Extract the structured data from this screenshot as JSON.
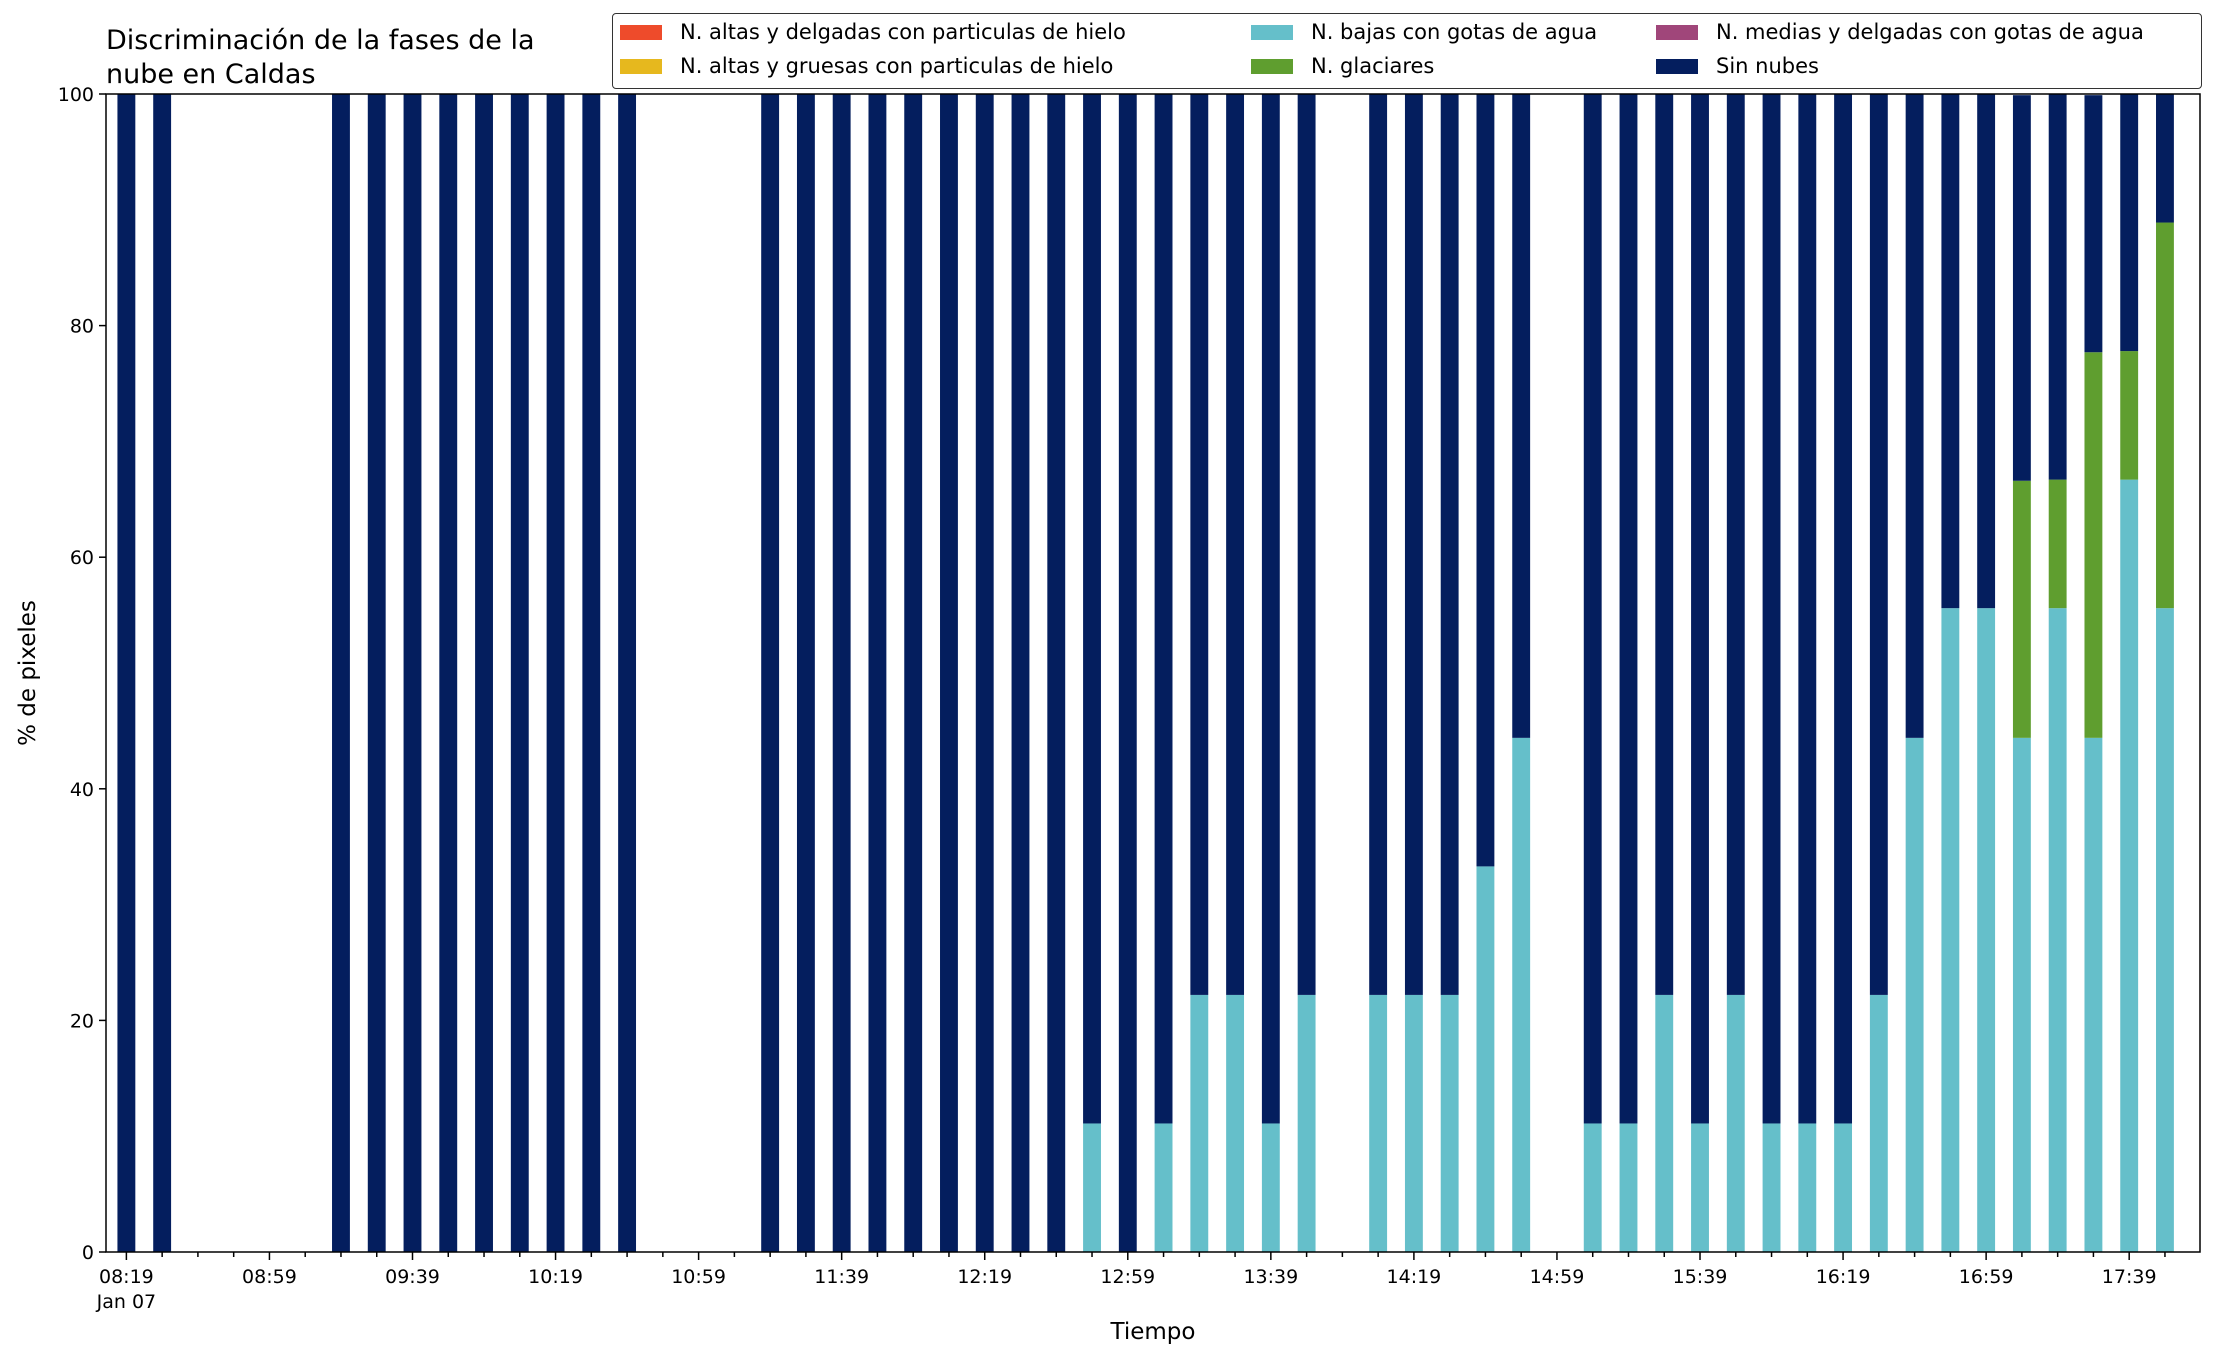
{
  "chart_data": {
    "type": "bar",
    "stacked": true,
    "title": "Discriminación de la fases de la nube en Caldas",
    "title_lines": [
      "Discriminación de la fases de la",
      "nube en Caldas"
    ],
    "xlabel": "Tiempo",
    "ylabel": "% de pixeles",
    "ylim": [
      0,
      100
    ],
    "yticks": [
      "0",
      "20",
      "40",
      "60",
      "80",
      "100"
    ],
    "x_tick_labels": [
      "08:19",
      "08:59",
      "09:39",
      "10:19",
      "10:59",
      "11:39",
      "12:19",
      "12:59",
      "13:39",
      "14:19",
      "14:59",
      "15:39",
      "16:19",
      "16:59",
      "17:39"
    ],
    "x_date_label": "Jan 07",
    "grid": false,
    "legend_position": "top-right",
    "categories": [
      "08:19",
      "08:29",
      "08:39",
      "08:49",
      "08:59",
      "09:09",
      "09:19",
      "09:29",
      "09:39",
      "09:49",
      "09:59",
      "10:09",
      "10:19",
      "10:29",
      "10:39",
      "10:49",
      "10:59",
      "11:09",
      "11:19",
      "11:29",
      "11:39",
      "11:49",
      "11:59",
      "12:09",
      "12:19",
      "12:29",
      "12:39",
      "12:49",
      "12:59",
      "13:09",
      "13:19",
      "13:29",
      "13:39",
      "13:49",
      "13:59",
      "14:09",
      "14:19",
      "14:29",
      "14:39",
      "14:49",
      "14:59",
      "15:09",
      "15:19",
      "15:29",
      "15:39",
      "15:49",
      "15:59",
      "16:09",
      "16:19",
      "16:29",
      "16:39",
      "16:49",
      "16:59",
      "17:09",
      "17:19",
      "17:29",
      "17:39",
      "17:49"
    ],
    "series": [
      {
        "name": "N. altas y delgadas con particulas de hielo",
        "color": "#ee4b2b",
        "values": [
          0,
          0,
          0,
          0,
          0,
          0,
          0,
          0,
          0,
          0,
          0,
          0,
          0,
          0,
          0,
          0,
          0,
          0,
          0,
          0,
          0,
          0,
          0,
          0,
          0,
          0,
          0,
          0,
          0,
          0,
          0,
          0,
          0,
          0,
          0,
          0,
          0,
          0,
          0,
          0,
          0,
          0,
          0,
          0,
          0,
          0,
          0,
          0,
          0,
          0,
          0,
          0,
          0,
          0,
          0,
          0,
          0,
          0
        ]
      },
      {
        "name": "N. altas y gruesas con particulas de hielo",
        "color": "#e6b81e",
        "values": [
          0,
          0,
          0,
          0,
          0,
          0,
          0,
          0,
          0,
          0,
          0,
          0,
          0,
          0,
          0,
          0,
          0,
          0,
          0,
          0,
          0,
          0,
          0,
          0,
          0,
          0,
          0,
          0,
          0,
          0,
          0,
          0,
          0,
          0,
          0,
          0,
          0,
          0,
          0,
          0,
          0,
          0,
          0,
          0,
          0,
          0,
          0,
          0,
          0,
          0,
          0,
          0,
          0,
          0,
          0,
          0,
          0,
          0
        ]
      },
      {
        "name": "N. bajas con gotas de agua",
        "color": "#65bfca",
        "values": [
          0,
          0,
          null,
          null,
          null,
          null,
          0,
          0,
          0,
          0,
          0,
          0,
          0,
          0,
          0,
          null,
          null,
          null,
          0,
          0,
          0,
          0,
          0,
          0,
          0,
          0,
          0,
          11.1,
          0,
          11.1,
          22.2,
          22.2,
          11.1,
          22.2,
          null,
          22.2,
          22.2,
          22.2,
          33.3,
          44.4,
          null,
          11.1,
          11.1,
          22.2,
          11.1,
          22.2,
          11.1,
          11.1,
          11.1,
          22.2,
          44.4,
          55.6,
          55.6,
          44.4,
          55.6,
          44.4,
          66.7,
          55.6
        ]
      },
      {
        "name": "N. glaciares",
        "color": "#5f9e2f",
        "values": [
          0,
          0,
          null,
          null,
          null,
          null,
          0,
          0,
          0,
          0,
          0,
          0,
          0,
          0,
          0,
          null,
          null,
          null,
          0,
          0,
          0,
          0,
          0,
          0,
          0,
          0,
          0,
          0,
          0,
          0,
          0,
          0,
          0,
          0,
          null,
          0,
          0,
          0,
          0,
          0,
          null,
          0,
          0,
          0,
          0,
          0,
          0,
          0,
          0,
          0,
          0,
          0,
          0,
          22.2,
          11.1,
          33.3,
          11.1,
          33.3
        ]
      },
      {
        "name": "N. medias y delgadas con gotas de agua",
        "color": "#a0467a",
        "values": [
          0,
          0,
          0,
          0,
          0,
          0,
          0,
          0,
          0,
          0,
          0,
          0,
          0,
          0,
          0,
          0,
          0,
          0,
          0,
          0,
          0,
          0,
          0,
          0,
          0,
          0,
          0,
          0,
          0,
          0,
          0,
          0,
          0,
          0,
          0,
          0,
          0,
          0,
          0,
          0,
          0,
          0,
          0,
          0,
          0,
          0,
          0,
          0,
          0,
          0,
          0,
          0,
          0,
          0,
          0,
          0,
          0,
          0
        ]
      },
      {
        "name": "Sin nubes",
        "color": "#041e5e",
        "values": [
          100,
          100,
          null,
          null,
          null,
          null,
          100,
          100,
          100,
          100,
          100,
          100,
          100,
          100,
          100,
          null,
          null,
          null,
          100,
          100,
          100,
          100,
          100,
          100,
          100,
          100,
          100,
          88.9,
          100,
          88.9,
          77.8,
          77.8,
          88.9,
          77.8,
          null,
          77.8,
          77.8,
          77.8,
          66.7,
          55.6,
          null,
          88.9,
          88.9,
          77.8,
          88.9,
          77.8,
          88.9,
          88.9,
          88.9,
          77.8,
          55.6,
          44.4,
          44.4,
          33.3,
          33.3,
          22.2,
          22.2,
          11.1
        ]
      }
    ]
  },
  "legend_order": [
    0,
    1,
    2,
    3,
    4,
    5
  ]
}
